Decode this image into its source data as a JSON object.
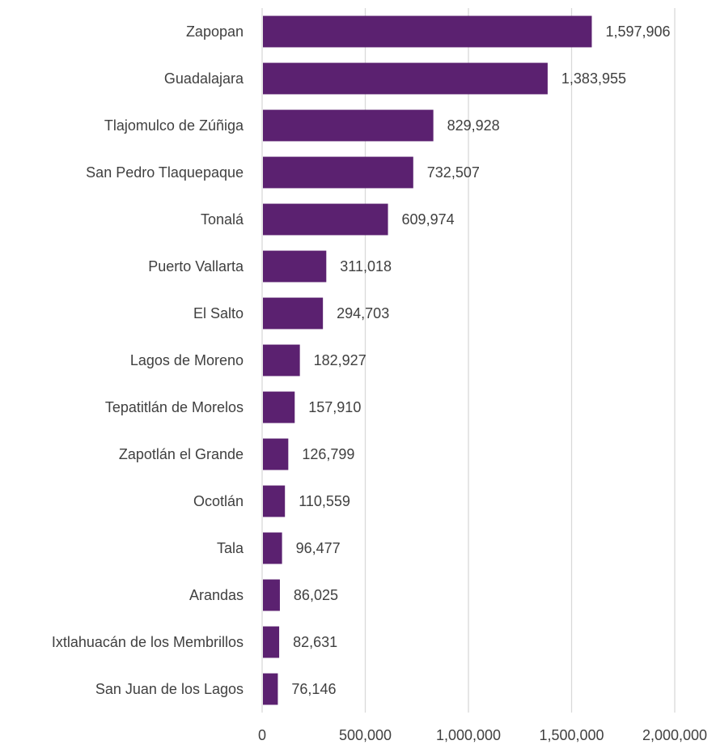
{
  "chart_data": {
    "type": "bar",
    "orientation": "horizontal",
    "categories": [
      "Zapopan",
      "Guadalajara",
      "Tlajomulco de Zúñiga",
      "San Pedro Tlaquepaque",
      "Tonalá",
      "Puerto Vallarta",
      "El Salto",
      "Lagos de Moreno",
      "Tepatitlán de Morelos",
      "Zapotlán el Grande",
      "Ocotlán",
      "Tala",
      "Arandas",
      "Ixtlahuacán de los Membrillos",
      "San Juan de los Lagos"
    ],
    "values": [
      1597906,
      1383955,
      829928,
      732507,
      609974,
      311018,
      294703,
      182927,
      157910,
      126799,
      110559,
      96477,
      86025,
      82631,
      76146
    ],
    "value_labels": [
      "1,597,906",
      "1,383,955",
      "829,928",
      "732,507",
      "609,974",
      "311,018",
      "294,703",
      "182,927",
      "157,910",
      "126,799",
      "110,559",
      "96,477",
      "86,025",
      "82,631",
      "76,146"
    ],
    "xlim": [
      0,
      2000000
    ],
    "x_ticks": [
      0,
      500000,
      1000000,
      1500000,
      2000000
    ],
    "x_tick_labels": [
      "0",
      "500,000",
      "1,000,000",
      "1,500,000",
      "2,000,000"
    ],
    "grid": "vertical",
    "legend": "none",
    "title": "",
    "xlabel": "",
    "ylabel": "",
    "bar_color": "#5b2170"
  }
}
